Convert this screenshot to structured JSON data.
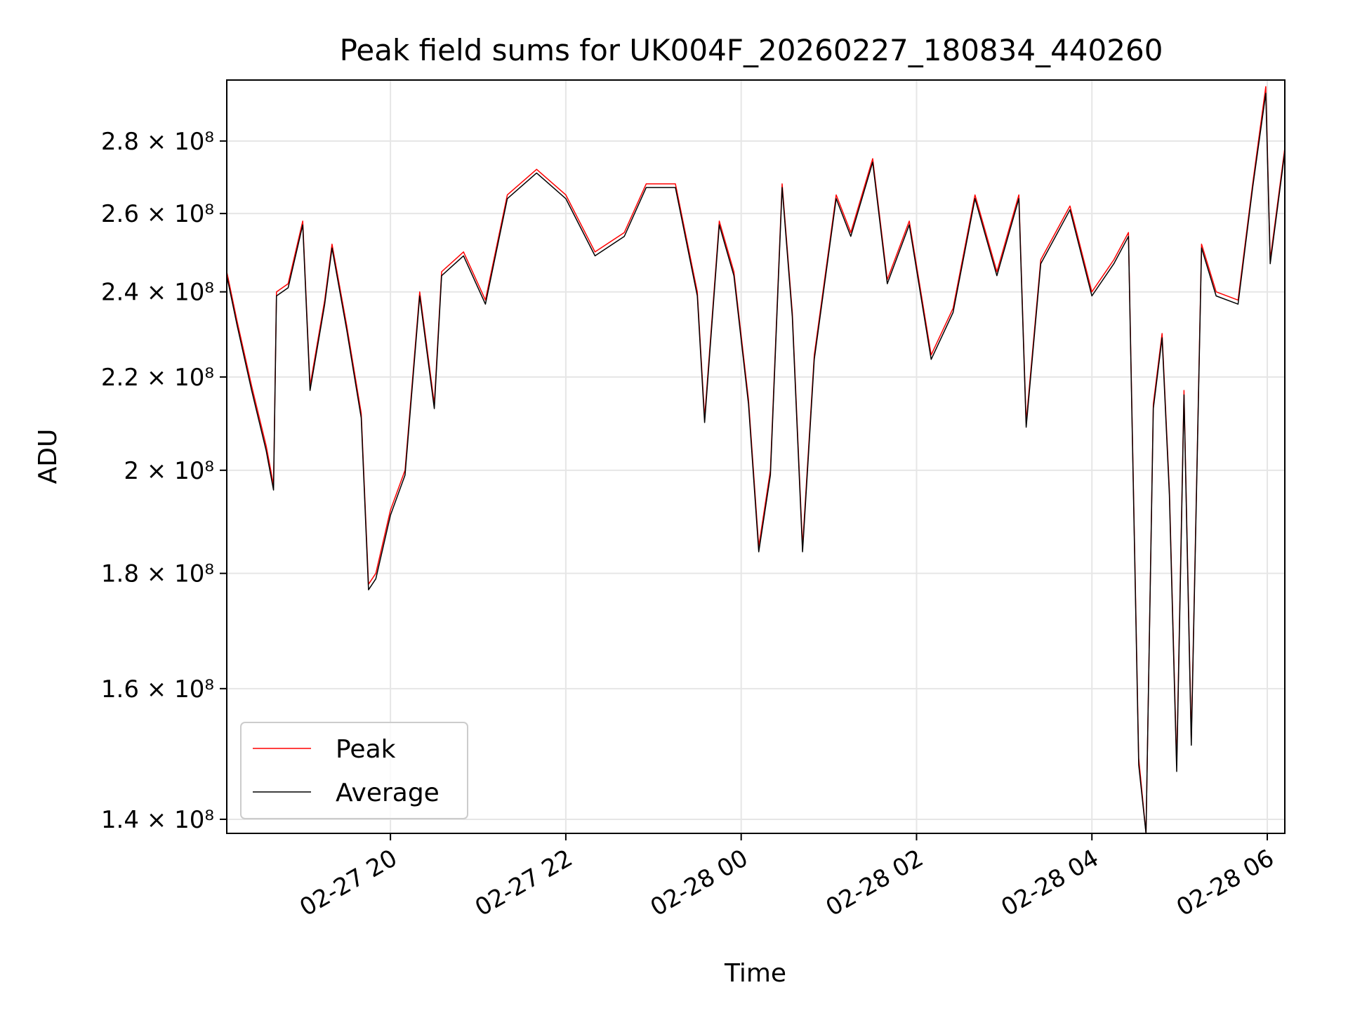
{
  "chart_data": {
    "type": "line",
    "title": "Peak field sums for UK004F_20260227_180834_440260",
    "xlabel": "Time",
    "ylabel": "ADU",
    "x_unit": "time",
    "x_range": [
      "2026-02-27 18:08",
      "2026-02-28 06:12"
    ],
    "ylim": [
      138000000,
      298000000
    ],
    "y_scale": "log",
    "grid": true,
    "legend_position": "lower left",
    "x_ticks": [
      {
        "t": "2026-02-27 20:00",
        "label": "02-27 20"
      },
      {
        "t": "2026-02-27 22:00",
        "label": "02-27 22"
      },
      {
        "t": "2026-02-28 00:00",
        "label": "02-28 00"
      },
      {
        "t": "2026-02-28 02:00",
        "label": "02-28 02"
      },
      {
        "t": "2026-02-28 04:00",
        "label": "02-28 04"
      },
      {
        "t": "2026-02-28 06:00",
        "label": "02-28 06"
      }
    ],
    "y_ticks": [
      {
        "value": 140000000,
        "label": "1.4 × 10⁸"
      },
      {
        "value": 160000000,
        "label": "1.6 × 10⁸"
      },
      {
        "value": 180000000,
        "label": "1.8 × 10⁸"
      },
      {
        "value": 200000000,
        "label": "2 × 10⁸"
      },
      {
        "value": 220000000,
        "label": "2.2 × 10⁸"
      },
      {
        "value": 240000000,
        "label": "2.4 × 10⁸"
      },
      {
        "value": 260000000,
        "label": "2.6 × 10⁸"
      },
      {
        "value": 280000000,
        "label": "2.8 × 10⁸"
      }
    ],
    "series": [
      {
        "name": "Peak",
        "color": "#ff0000",
        "points": [
          [
            "2026-02-27 18:08",
            245000000
          ],
          [
            "2026-02-27 18:15",
            233000000
          ],
          [
            "2026-02-27 18:25",
            218000000
          ],
          [
            "2026-02-27 18:35",
            205000000
          ],
          [
            "2026-02-27 18:40",
            197000000
          ],
          [
            "2026-02-27 18:42",
            240000000
          ],
          [
            "2026-02-27 18:50",
            242000000
          ],
          [
            "2026-02-27 19:00",
            258000000
          ],
          [
            "2026-02-27 19:05",
            218000000
          ],
          [
            "2026-02-27 19:15",
            238000000
          ],
          [
            "2026-02-27 19:20",
            252000000
          ],
          [
            "2026-02-27 19:30",
            232000000
          ],
          [
            "2026-02-27 19:40",
            212000000
          ],
          [
            "2026-02-27 19:45",
            178000000
          ],
          [
            "2026-02-27 19:50",
            180000000
          ],
          [
            "2026-02-27 20:00",
            192000000
          ],
          [
            "2026-02-27 20:10",
            200000000
          ],
          [
            "2026-02-27 20:20",
            240000000
          ],
          [
            "2026-02-27 20:30",
            214000000
          ],
          [
            "2026-02-27 20:35",
            245000000
          ],
          [
            "2026-02-27 20:50",
            250000000
          ],
          [
            "2026-02-27 21:05",
            238000000
          ],
          [
            "2026-02-27 21:20",
            265000000
          ],
          [
            "2026-02-27 21:40",
            272000000
          ],
          [
            "2026-02-27 22:00",
            265000000
          ],
          [
            "2026-02-27 22:20",
            250000000
          ],
          [
            "2026-02-27 22:40",
            255000000
          ],
          [
            "2026-02-27 22:55",
            268000000
          ],
          [
            "2026-02-27 23:15",
            268000000
          ],
          [
            "2026-02-27 23:30",
            240000000
          ],
          [
            "2026-02-27 23:35",
            211000000
          ],
          [
            "2026-02-27 23:45",
            258000000
          ],
          [
            "2026-02-27 23:55",
            245000000
          ],
          [
            "2026-02-28 00:05",
            215000000
          ],
          [
            "2026-02-28 00:12",
            185000000
          ],
          [
            "2026-02-28 00:20",
            200000000
          ],
          [
            "2026-02-28 00:28",
            268000000
          ],
          [
            "2026-02-28 00:35",
            235000000
          ],
          [
            "2026-02-28 00:42",
            185000000
          ],
          [
            "2026-02-28 00:50",
            225000000
          ],
          [
            "2026-02-28 01:05",
            265000000
          ],
          [
            "2026-02-28 01:15",
            255000000
          ],
          [
            "2026-02-28 01:30",
            275000000
          ],
          [
            "2026-02-28 01:40",
            243000000
          ],
          [
            "2026-02-28 01:55",
            258000000
          ],
          [
            "2026-02-28 02:10",
            225000000
          ],
          [
            "2026-02-28 02:25",
            236000000
          ],
          [
            "2026-02-28 02:40",
            265000000
          ],
          [
            "2026-02-28 02:55",
            245000000
          ],
          [
            "2026-02-28 03:10",
            265000000
          ],
          [
            "2026-02-28 03:15",
            210000000
          ],
          [
            "2026-02-28 03:25",
            248000000
          ],
          [
            "2026-02-28 03:45",
            262000000
          ],
          [
            "2026-02-28 04:00",
            240000000
          ],
          [
            "2026-02-28 04:15",
            248000000
          ],
          [
            "2026-02-28 04:25",
            255000000
          ],
          [
            "2026-02-28 04:32",
            149000000
          ],
          [
            "2026-02-28 04:37",
            138000000
          ],
          [
            "2026-02-28 04:42",
            214000000
          ],
          [
            "2026-02-28 04:48",
            230000000
          ],
          [
            "2026-02-28 04:53",
            196000000
          ],
          [
            "2026-02-28 04:58",
            148000000
          ],
          [
            "2026-02-28 05:03",
            217000000
          ],
          [
            "2026-02-28 05:08",
            152000000
          ],
          [
            "2026-02-28 05:15",
            252000000
          ],
          [
            "2026-02-28 05:25",
            240000000
          ],
          [
            "2026-02-28 05:40",
            238000000
          ],
          [
            "2026-02-28 05:50",
            268000000
          ],
          [
            "2026-02-28 05:59",
            296000000
          ],
          [
            "2026-02-28 06:02",
            248000000
          ],
          [
            "2026-02-28 06:12",
            278000000
          ]
        ]
      },
      {
        "name": "Average",
        "color": "#000000",
        "points": [
          [
            "2026-02-27 18:08",
            244000000
          ],
          [
            "2026-02-27 18:15",
            232000000
          ],
          [
            "2026-02-27 18:25",
            217000000
          ],
          [
            "2026-02-27 18:35",
            204000000
          ],
          [
            "2026-02-27 18:40",
            196000000
          ],
          [
            "2026-02-27 18:42",
            239000000
          ],
          [
            "2026-02-27 18:50",
            241000000
          ],
          [
            "2026-02-27 19:00",
            257000000
          ],
          [
            "2026-02-27 19:05",
            217000000
          ],
          [
            "2026-02-27 19:15",
            237000000
          ],
          [
            "2026-02-27 19:20",
            251000000
          ],
          [
            "2026-02-27 19:30",
            231000000
          ],
          [
            "2026-02-27 19:40",
            211000000
          ],
          [
            "2026-02-27 19:45",
            177000000
          ],
          [
            "2026-02-27 19:50",
            179000000
          ],
          [
            "2026-02-27 20:00",
            191000000
          ],
          [
            "2026-02-27 20:10",
            199000000
          ],
          [
            "2026-02-27 20:20",
            239000000
          ],
          [
            "2026-02-27 20:30",
            213000000
          ],
          [
            "2026-02-27 20:35",
            244000000
          ],
          [
            "2026-02-27 20:50",
            249000000
          ],
          [
            "2026-02-27 21:05",
            237000000
          ],
          [
            "2026-02-27 21:20",
            264000000
          ],
          [
            "2026-02-27 21:40",
            271000000
          ],
          [
            "2026-02-27 22:00",
            264000000
          ],
          [
            "2026-02-27 22:20",
            249000000
          ],
          [
            "2026-02-27 22:40",
            254000000
          ],
          [
            "2026-02-27 22:55",
            267000000
          ],
          [
            "2026-02-27 23:15",
            267000000
          ],
          [
            "2026-02-27 23:30",
            239000000
          ],
          [
            "2026-02-27 23:35",
            210000000
          ],
          [
            "2026-02-27 23:45",
            257000000
          ],
          [
            "2026-02-27 23:55",
            244000000
          ],
          [
            "2026-02-28 00:05",
            214000000
          ],
          [
            "2026-02-28 00:12",
            184000000
          ],
          [
            "2026-02-28 00:20",
            199000000
          ],
          [
            "2026-02-28 00:28",
            267000000
          ],
          [
            "2026-02-28 00:35",
            234000000
          ],
          [
            "2026-02-28 00:42",
            184000000
          ],
          [
            "2026-02-28 00:50",
            224000000
          ],
          [
            "2026-02-28 01:05",
            264000000
          ],
          [
            "2026-02-28 01:15",
            254000000
          ],
          [
            "2026-02-28 01:30",
            274000000
          ],
          [
            "2026-02-28 01:40",
            242000000
          ],
          [
            "2026-02-28 01:55",
            257000000
          ],
          [
            "2026-02-28 02:10",
            224000000
          ],
          [
            "2026-02-28 02:25",
            235000000
          ],
          [
            "2026-02-28 02:40",
            264000000
          ],
          [
            "2026-02-28 02:55",
            244000000
          ],
          [
            "2026-02-28 03:10",
            264000000
          ],
          [
            "2026-02-28 03:15",
            209000000
          ],
          [
            "2026-02-28 03:25",
            247000000
          ],
          [
            "2026-02-28 03:45",
            261000000
          ],
          [
            "2026-02-28 04:00",
            239000000
          ],
          [
            "2026-02-28 04:15",
            247000000
          ],
          [
            "2026-02-28 04:25",
            254000000
          ],
          [
            "2026-02-28 04:32",
            148000000
          ],
          [
            "2026-02-28 04:37",
            138000000
          ],
          [
            "2026-02-28 04:42",
            213000000
          ],
          [
            "2026-02-28 04:48",
            229000000
          ],
          [
            "2026-02-28 04:53",
            195000000
          ],
          [
            "2026-02-28 04:58",
            147000000
          ],
          [
            "2026-02-28 05:03",
            216000000
          ],
          [
            "2026-02-28 05:08",
            151000000
          ],
          [
            "2026-02-28 05:15",
            251000000
          ],
          [
            "2026-02-28 05:25",
            239000000
          ],
          [
            "2026-02-28 05:40",
            237000000
          ],
          [
            "2026-02-28 05:50",
            267000000
          ],
          [
            "2026-02-28 05:59",
            294000000
          ],
          [
            "2026-02-28 06:02",
            247000000
          ],
          [
            "2026-02-28 06:12",
            277000000
          ]
        ]
      }
    ]
  }
}
